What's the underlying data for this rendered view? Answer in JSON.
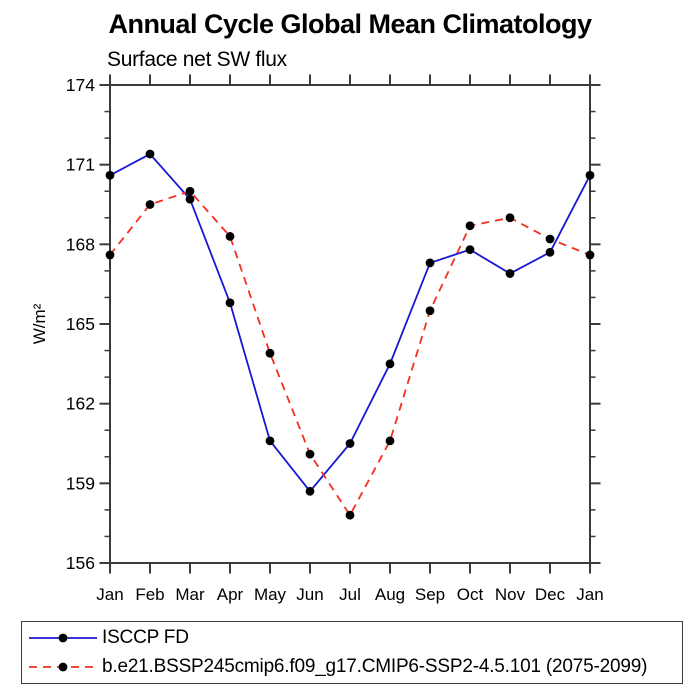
{
  "chart_data": {
    "type": "line",
    "title": "Annual Cycle Global Mean Climatology",
    "subtitle": "Surface net SW flux",
    "xlabel": "",
    "ylabel": "W/m²",
    "categories": [
      "Jan",
      "Feb",
      "Mar",
      "Apr",
      "May",
      "Jun",
      "Jul",
      "Aug",
      "Sep",
      "Oct",
      "Nov",
      "Dec",
      "Jan"
    ],
    "ylim": [
      156,
      174
    ],
    "ytick_labels": [
      "156",
      "159",
      "162",
      "165",
      "168",
      "171",
      "174"
    ],
    "ytick_major_interval": 3,
    "ytick_minor_interval": 1,
    "grid": false,
    "legend_position": "bottom",
    "frame_color": "#3a3a3a",
    "series": [
      {
        "name": "ISCCP FD",
        "color": "#1717d3",
        "line_style": "solid",
        "marker": "filled-circle",
        "marker_color": "#000000",
        "values": [
          170.6,
          171.4,
          169.7,
          165.8,
          160.6,
          158.7,
          160.5,
          163.5,
          167.3,
          167.8,
          166.9,
          167.7,
          170.6
        ]
      },
      {
        "name": "b.e21.BSSP245cmip6.f09_g17.CMIP6-SSP2-4.5.101 (2075-2099)",
        "color": "#f42e1e",
        "line_style": "dashed",
        "marker": "filled-circle",
        "marker_color": "#000000",
        "values": [
          167.6,
          169.5,
          170.0,
          168.3,
          163.9,
          160.1,
          157.8,
          160.6,
          165.5,
          168.7,
          169.0,
          168.2,
          167.6
        ]
      }
    ]
  }
}
